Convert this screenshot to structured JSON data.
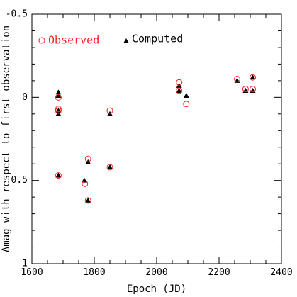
{
  "chart_data": {
    "type": "scatter",
    "xlabel": "Epoch (JD)",
    "ylabel": "Δmag with respect to first observation",
    "xlim": [
      1600,
      2400
    ],
    "ylim": [
      -0.5,
      1
    ],
    "y_inverted": true,
    "x_ticks": [
      "1600",
      "1800",
      "2000",
      "2200",
      "2400"
    ],
    "y_ticks": [
      "-0.5",
      "0",
      "0.5",
      "1"
    ],
    "legend_position": "top-left",
    "colors": {
      "observed": "#ff2020",
      "computed": "#000000"
    },
    "series": [
      {
        "name": "Observed",
        "marker": "open-circle",
        "points": [
          {
            "x": 1685,
            "y": 0.0
          },
          {
            "x": 1685,
            "y": 0.07
          },
          {
            "x": 1685,
            "y": 0.08
          },
          {
            "x": 1685,
            "y": 0.47
          },
          {
            "x": 1770,
            "y": 0.52
          },
          {
            "x": 1780,
            "y": 0.37
          },
          {
            "x": 1780,
            "y": 0.62
          },
          {
            "x": 1850,
            "y": 0.08
          },
          {
            "x": 1850,
            "y": 0.42
          },
          {
            "x": 2072,
            "y": -0.09
          },
          {
            "x": 2072,
            "y": -0.04
          },
          {
            "x": 2095,
            "y": 0.04
          },
          {
            "x": 2258,
            "y": -0.11
          },
          {
            "x": 2285,
            "y": -0.05
          },
          {
            "x": 2308,
            "y": -0.12
          },
          {
            "x": 2308,
            "y": -0.05
          }
        ]
      },
      {
        "name": "Computed",
        "marker": "filled-triangle",
        "points": [
          {
            "x": 1685,
            "y": -0.03
          },
          {
            "x": 1685,
            "y": -0.01
          },
          {
            "x": 1685,
            "y": 0.08
          },
          {
            "x": 1685,
            "y": 0.1
          },
          {
            "x": 1685,
            "y": 0.47
          },
          {
            "x": 1768,
            "y": 0.5
          },
          {
            "x": 1780,
            "y": 0.39
          },
          {
            "x": 1780,
            "y": 0.62
          },
          {
            "x": 1850,
            "y": 0.1
          },
          {
            "x": 1850,
            "y": 0.42
          },
          {
            "x": 2072,
            "y": -0.07
          },
          {
            "x": 2072,
            "y": -0.04
          },
          {
            "x": 2095,
            "y": -0.01
          },
          {
            "x": 2258,
            "y": -0.1
          },
          {
            "x": 2285,
            "y": -0.04
          },
          {
            "x": 2308,
            "y": -0.12
          },
          {
            "x": 2308,
            "y": -0.04
          }
        ]
      }
    ]
  }
}
